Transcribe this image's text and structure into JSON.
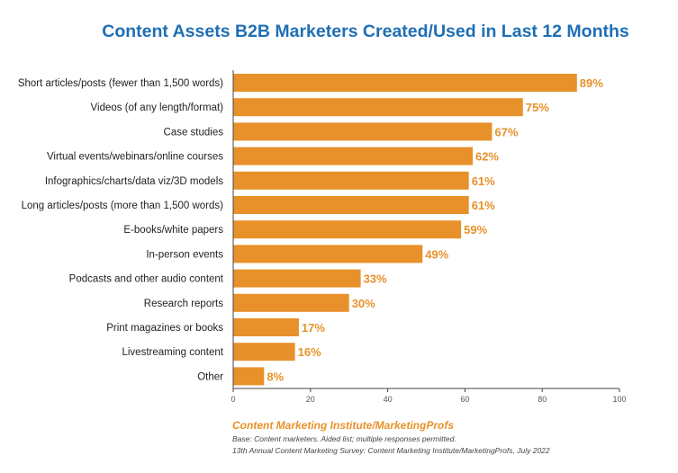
{
  "chart_data": {
    "type": "bar",
    "orientation": "horizontal",
    "title": "Content Assets B2B Marketers Created/Used in Last 12 Months",
    "categories": [
      "Short articles/posts (fewer than 1,500 words)",
      "Videos (of any length/format)",
      "Case studies",
      "Virtual events/webinars/online courses",
      "Infographics/charts/data viz/3D models",
      "Long articles/posts (more than 1,500 words)",
      "E-books/white papers",
      "In-person events",
      "Podcasts and other audio content",
      "Research reports",
      "Print magazines or books",
      "Livestreaming content",
      "Other"
    ],
    "values": [
      89,
      75,
      67,
      62,
      61,
      61,
      59,
      49,
      33,
      30,
      17,
      16,
      8
    ],
    "value_labels": [
      "89%",
      "75%",
      "67%",
      "62%",
      "61%",
      "61%",
      "59%",
      "49%",
      "33%",
      "30%",
      "17%",
      "16%",
      "8%"
    ],
    "xlim": [
      0,
      100
    ],
    "xticks": [
      0,
      20,
      40,
      60,
      80,
      100
    ],
    "xlabel": "",
    "ylabel": "",
    "grid": false,
    "bar_color": "#e8912a",
    "label_color": "#e8912a",
    "title_color": "#1f6fb5"
  },
  "footer": {
    "source": "Content Marketing Institute/MarketingProfs",
    "base": "Base: Content marketers. Aided list; multiple responses permitted.",
    "survey": "13th Annual Content Marketing Survey: Content Marketing Institute/MarketingProfs, July 2022"
  }
}
